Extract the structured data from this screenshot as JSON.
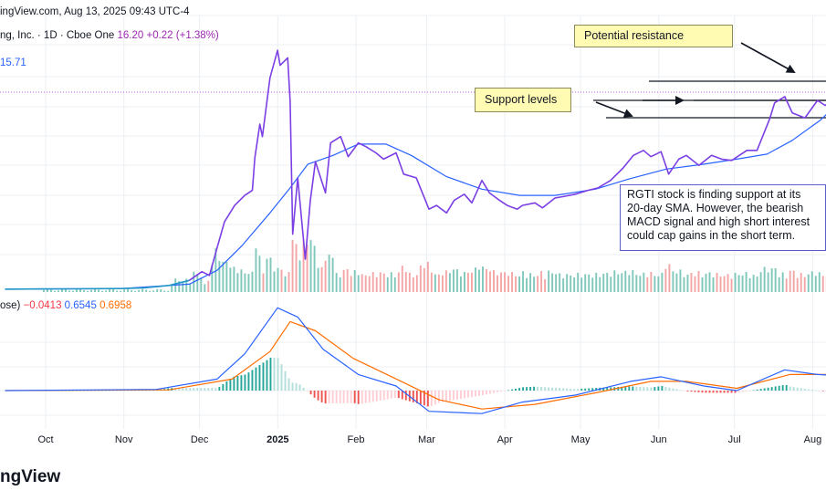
{
  "header": {
    "publish_line": "ingView.com, Aug 13, 2025 09:43 UTC-4",
    "symbol_line": "ng, Inc. · 1D · Cboe One",
    "price": "16.20",
    "change": "+0.22 (+1.38%)",
    "ma_value": "15.71"
  },
  "annotations": {
    "potential_resistance": "Potential resistance",
    "support_levels": "Support levels",
    "comment": "RGTI stock is finding support at its 20-day SMA. However, the bearish MACD signal and high short interest could cap gains in the short term."
  },
  "macd_header": {
    "label": "ose)",
    "histogram": "−0.0413",
    "macd": "0.6545",
    "signal": "0.6958"
  },
  "branding": "ngView",
  "colors": {
    "price_line": "#7b3fe4",
    "ma_line": "#2962ff",
    "pre_line": "#2196c8",
    "vol_up": "#7fc7bb",
    "vol_down": "#f4a6a6",
    "macd_line": "#2962ff",
    "signal_line": "#ff6d00",
    "hist_up_strong": "#26a69a",
    "hist_up_weak": "#b2dfdb",
    "hist_down_strong": "#ef5350",
    "hist_down_weak": "#ffcdd2",
    "red_text": "#f23645",
    "blue_text": "#2962ff",
    "orange_text": "#ff6d00"
  },
  "chart_data": {
    "type": "line",
    "x_tick_labels": [
      "Oct",
      "Nov",
      "Dec",
      "2025",
      "Feb",
      "Mar",
      "Apr",
      "May",
      "Jun",
      "Jul",
      "Aug"
    ],
    "price_series": [
      [
        "2024-09-16",
        0.9
      ],
      [
        "2024-10-01",
        0.92
      ],
      [
        "2024-10-15",
        0.93
      ],
      [
        "2024-11-01",
        0.95
      ],
      [
        "2024-11-10",
        1.0
      ],
      [
        "2024-11-20",
        1.2
      ],
      [
        "2024-11-28",
        1.6
      ],
      [
        "2024-12-03",
        2.3
      ],
      [
        "2024-12-06",
        2.0
      ],
      [
        "2024-12-09",
        4.2
      ],
      [
        "2024-12-12",
        6.3
      ],
      [
        "2024-12-16",
        7.6
      ],
      [
        "2024-12-20",
        8.4
      ],
      [
        "2024-12-23",
        8.8
      ],
      [
        "2024-12-24",
        11.4
      ],
      [
        "2024-12-26",
        14.1
      ],
      [
        "2024-12-27",
        13.1
      ],
      [
        "2024-12-30",
        17.8
      ],
      [
        "2025-01-02",
        20.0
      ],
      [
        "2025-01-03",
        18.8
      ],
      [
        "2025-01-06",
        19.4
      ],
      [
        "2025-01-07",
        15.9
      ],
      [
        "2025-01-08",
        5.3
      ],
      [
        "2025-01-10",
        9.8
      ],
      [
        "2025-01-13",
        3.3
      ],
      [
        "2025-01-15",
        8.0
      ],
      [
        "2025-01-17",
        11.1
      ],
      [
        "2025-01-21",
        8.6
      ],
      [
        "2025-01-23",
        12.6
      ],
      [
        "2025-01-27",
        13.1
      ],
      [
        "2025-01-30",
        11.5
      ],
      [
        "2025-02-03",
        12.6
      ],
      [
        "2025-02-06",
        12.3
      ],
      [
        "2025-02-10",
        11.8
      ],
      [
        "2025-02-13",
        11.3
      ],
      [
        "2025-02-18",
        11.8
      ],
      [
        "2025-02-21",
        10.1
      ],
      [
        "2025-02-26",
        9.8
      ],
      [
        "2025-03-03",
        7.3
      ],
      [
        "2025-03-06",
        7.6
      ],
      [
        "2025-03-10",
        7.0
      ],
      [
        "2025-03-13",
        8.0
      ],
      [
        "2025-03-17",
        8.5
      ],
      [
        "2025-03-20",
        7.8
      ],
      [
        "2025-03-24",
        9.6
      ],
      [
        "2025-03-27",
        8.6
      ],
      [
        "2025-03-31",
        8.0
      ],
      [
        "2025-04-03",
        7.6
      ],
      [
        "2025-04-07",
        7.3
      ],
      [
        "2025-04-09",
        7.6
      ],
      [
        "2025-04-14",
        7.8
      ],
      [
        "2025-04-17",
        7.4
      ],
      [
        "2025-04-22",
        8.2
      ],
      [
        "2025-04-25",
        8.3
      ],
      [
        "2025-04-30",
        8.5
      ],
      [
        "2025-05-05",
        8.8
      ],
      [
        "2025-05-09",
        9.0
      ],
      [
        "2025-05-14",
        9.6
      ],
      [
        "2025-05-19",
        10.6
      ],
      [
        "2025-05-23",
        11.6
      ],
      [
        "2025-05-27",
        12.0
      ],
      [
        "2025-05-30",
        11.5
      ],
      [
        "2025-06-03",
        11.9
      ],
      [
        "2025-06-06",
        10.1
      ],
      [
        "2025-06-10",
        11.3
      ],
      [
        "2025-06-13",
        11.6
      ],
      [
        "2025-06-18",
        10.8
      ],
      [
        "2025-06-23",
        11.6
      ],
      [
        "2025-06-27",
        11.3
      ],
      [
        "2025-07-01",
        11.2
      ],
      [
        "2025-07-07",
        12.0
      ],
      [
        "2025-07-11",
        12.0
      ],
      [
        "2025-07-16",
        14.5
      ],
      [
        "2025-07-18",
        15.8
      ],
      [
        "2025-07-22",
        16.3
      ],
      [
        "2025-07-25",
        15.0
      ],
      [
        "2025-07-30",
        14.6
      ],
      [
        "2025-08-04",
        16.0
      ],
      [
        "2025-08-07",
        15.6
      ],
      [
        "2025-08-12",
        16.2
      ]
    ],
    "sma_series": [
      [
        "2024-09-16",
        0.9
      ],
      [
        "2024-11-01",
        0.95
      ],
      [
        "2024-11-28",
        1.3
      ],
      [
        "2024-12-09",
        2.4
      ],
      [
        "2024-12-19",
        4.4
      ],
      [
        "2024-12-30",
        7.0
      ],
      [
        "2025-01-07",
        9.0
      ],
      [
        "2025-01-14",
        10.9
      ],
      [
        "2025-01-24",
        11.6
      ],
      [
        "2025-02-03",
        12.5
      ],
      [
        "2025-02-14",
        12.5
      ],
      [
        "2025-02-24",
        11.6
      ],
      [
        "2025-03-10",
        9.9
      ],
      [
        "2025-03-24",
        8.9
      ],
      [
        "2025-04-08",
        8.4
      ],
      [
        "2025-04-22",
        8.4
      ],
      [
        "2025-05-08",
        8.9
      ],
      [
        "2025-05-21",
        9.7
      ],
      [
        "2025-06-05",
        10.5
      ],
      [
        "2025-06-20",
        10.9
      ],
      [
        "2025-07-03",
        11.3
      ],
      [
        "2025-07-15",
        11.7
      ],
      [
        "2025-07-25",
        12.8
      ],
      [
        "2025-08-05",
        14.4
      ],
      [
        "2025-08-12",
        15.71
      ]
    ],
    "macd_series": [
      [
        "2024-09-16",
        0.0
      ],
      [
        "2024-11-15",
        0.05
      ],
      [
        "2024-12-09",
        0.5
      ],
      [
        "2024-12-20",
        1.6
      ],
      [
        "2025-01-02",
        3.6
      ],
      [
        "2025-01-10",
        3.2
      ],
      [
        "2025-01-20",
        1.8
      ],
      [
        "2025-02-03",
        0.7
      ],
      [
        "2025-02-18",
        0.2
      ],
      [
        "2025-03-03",
        -0.9
      ],
      [
        "2025-03-24",
        -1.0
      ],
      [
        "2025-04-09",
        -0.5
      ],
      [
        "2025-04-30",
        -0.2
      ],
      [
        "2025-05-22",
        0.4
      ],
      [
        "2025-06-03",
        0.6
      ],
      [
        "2025-06-20",
        0.2
      ],
      [
        "2025-07-03",
        0.0
      ],
      [
        "2025-07-22",
        0.9
      ],
      [
        "2025-08-04",
        0.7
      ],
      [
        "2025-08-12",
        0.65
      ]
    ],
    "signal_series": [
      [
        "2024-09-16",
        0.0
      ],
      [
        "2024-11-20",
        0.03
      ],
      [
        "2024-12-15",
        0.5
      ],
      [
        "2024-12-30",
        1.7
      ],
      [
        "2025-01-07",
        3.0
      ],
      [
        "2025-01-17",
        2.6
      ],
      [
        "2025-02-01",
        1.4
      ],
      [
        "2025-02-20",
        0.4
      ],
      [
        "2025-03-07",
        -0.4
      ],
      [
        "2025-03-24",
        -0.8
      ],
      [
        "2025-04-14",
        -0.6
      ],
      [
        "2025-05-08",
        -0.1
      ],
      [
        "2025-05-30",
        0.4
      ],
      [
        "2025-06-13",
        0.4
      ],
      [
        "2025-07-03",
        0.1
      ],
      [
        "2025-07-24",
        0.7
      ],
      [
        "2025-08-12",
        0.7
      ]
    ],
    "ylim_price": [
      0.9,
      20.0
    ],
    "support_levels": [
      13.9,
      14.9
    ],
    "resistance_level": 16.4,
    "ma_label_value": 15.71,
    "price_level_marker": 16.2,
    "grid": true,
    "volume_pane": true,
    "macd_pane": true
  }
}
